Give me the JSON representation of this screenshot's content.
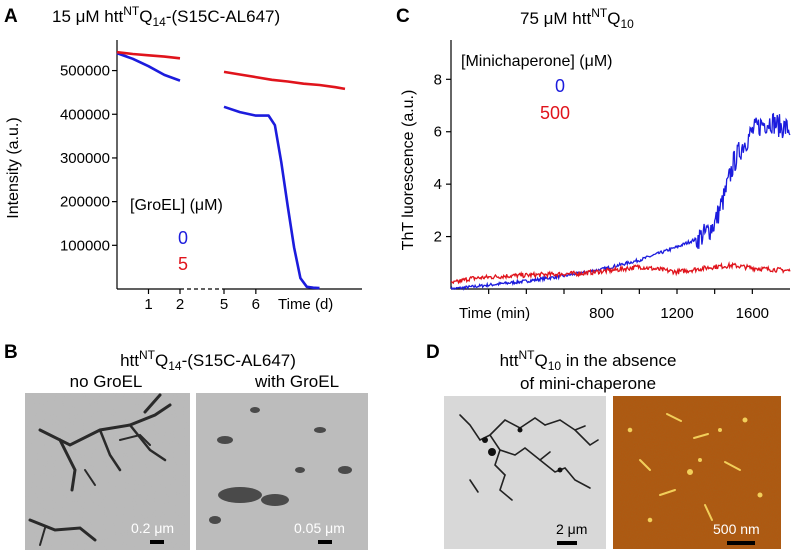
{
  "colors": {
    "blue": "#1c1cdd",
    "red": "#e0141c",
    "em_bg": "#b9b9b9",
    "afm_bg": "#b4540c"
  },
  "chart_data": [
    {
      "panel": "A",
      "type": "line",
      "title": "15 μM htt",
      "title_sup": "NT",
      "title_mid": "Q",
      "title_sub": "14",
      "title_tail": "-(S15C-AL647)",
      "xlabel": "Time (d)",
      "ylabel": "Intensity (a.u.)",
      "ylim": [
        0,
        570000
      ],
      "yticks": [
        100000,
        200000,
        300000,
        400000,
        500000
      ],
      "ytick_labels": [
        "100000",
        "200000",
        "300000",
        "400000",
        "500000"
      ],
      "xticks": [
        "1",
        "2",
        "5",
        "6"
      ],
      "axis_break": "between 2 and 5",
      "legend_title": "[GroEL] (μM)",
      "series": [
        {
          "name": "0",
          "color": "#1c1cdd",
          "segments": [
            {
              "x": [
                0.0,
                0.5,
                1.0,
                1.5,
                2.0
              ],
              "y": [
                540000,
                527000,
                510000,
                490000,
                477000
              ]
            },
            {
              "x": [
                5.0,
                5.5,
                6.0,
                6.4,
                6.6,
                6.8,
                7.0,
                7.2,
                7.4,
                7.6,
                7.8,
                8.0
              ],
              "y": [
                417000,
                405000,
                397000,
                397000,
                375000,
                290000,
                190000,
                95000,
                25000,
                5000,
                3000,
                2000
              ]
            }
          ]
        },
        {
          "name": "5",
          "color": "#e0141c",
          "segments": [
            {
              "x": [
                0.0,
                0.5,
                1.0,
                1.5,
                2.0
              ],
              "y": [
                542000,
                538000,
                535000,
                532000,
                528000
              ]
            },
            {
              "x": [
                5.0,
                5.5,
                6.0,
                6.5,
                7.0,
                7.5,
                8.0,
                8.5,
                8.8
              ],
              "y": [
                497000,
                491000,
                485000,
                479000,
                475000,
                470000,
                467000,
                462000,
                458000
              ]
            }
          ]
        }
      ]
    },
    {
      "panel": "C",
      "type": "line",
      "title": "75 μM htt",
      "title_sup": "NT",
      "title_mid": "Q",
      "title_sub": "10",
      "xlabel": "Time (min)",
      "ylabel": "ThT luorescence (a.u.)",
      "xlim": [
        0,
        1800
      ],
      "ylim": [
        0,
        9.5
      ],
      "xticks": [
        800,
        1200,
        1600
      ],
      "yticks": [
        2,
        4,
        6,
        8
      ],
      "legend_title": "[Minichaperone] (μM)",
      "series": [
        {
          "name": "0",
          "color": "#1c1cdd",
          "x": [
            0,
            200,
            400,
            600,
            800,
            1000,
            1100,
            1200,
            1300,
            1350,
            1400,
            1450,
            1500,
            1550,
            1600,
            1650,
            1700,
            1750,
            1800
          ],
          "y": [
            0.0,
            0.15,
            0.3,
            0.5,
            0.75,
            1.1,
            1.35,
            1.6,
            1.9,
            2.1,
            2.5,
            3.5,
            4.8,
            5.5,
            6.0,
            6.3,
            6.4,
            6.2,
            6.1
          ]
        },
        {
          "name": "500",
          "color": "#e0141c",
          "x": [
            0,
            100,
            300,
            500,
            700,
            900,
            1000,
            1200,
            1400,
            1500,
            1600,
            1700,
            1800
          ],
          "y": [
            0.2,
            0.4,
            0.5,
            0.55,
            0.6,
            0.75,
            0.85,
            0.65,
            0.85,
            0.9,
            0.8,
            0.75,
            0.7
          ]
        }
      ]
    }
  ],
  "panels": {
    "A": {
      "letter": "A"
    },
    "B": {
      "letter": "B",
      "title_pre": "htt",
      "title_sup": "NT",
      "title_mid": "Q",
      "title_sub": "14",
      "title_tail": "-(S15C-AL647)",
      "left_label": "no GroEL",
      "right_label": "with GroEL",
      "left_scale": "0.2 μm",
      "right_scale": "0.05 μm"
    },
    "C": {
      "letter": "C"
    },
    "D": {
      "letter": "D",
      "title_pre": "htt",
      "title_sup": "NT",
      "title_mid": "Q",
      "title_sub": "10",
      "title_tail": " in the absence",
      "title_line2": "of mini-chaperone",
      "left_scale": "2 μm",
      "right_scale": "500 nm"
    }
  }
}
